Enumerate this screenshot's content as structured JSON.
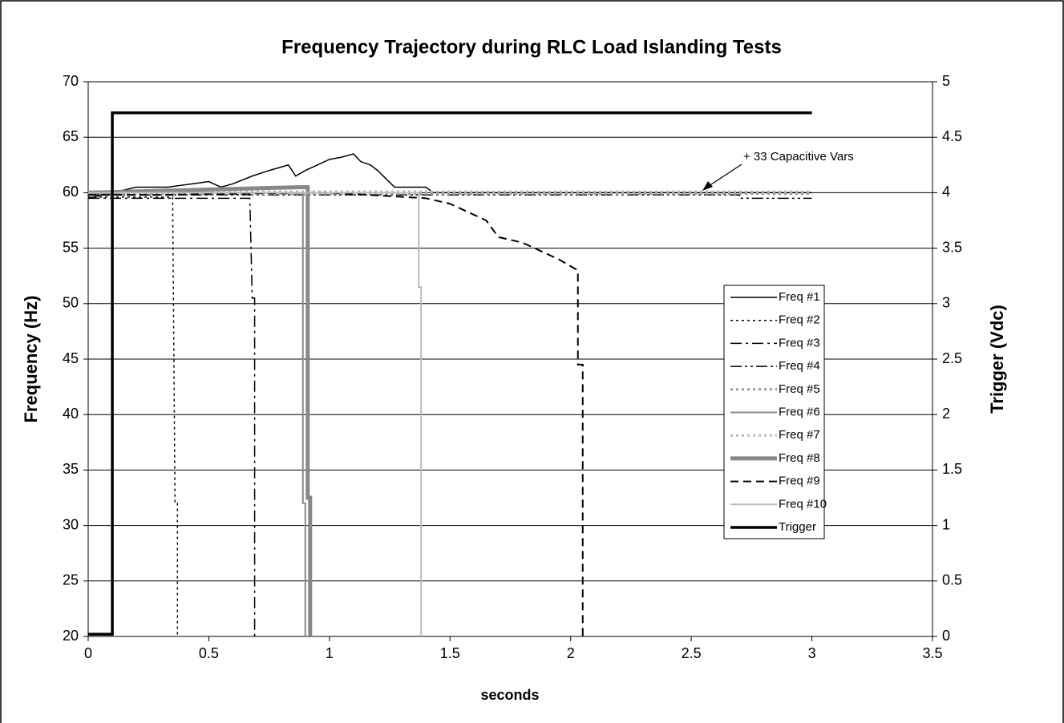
{
  "chart_data": {
    "type": "line",
    "title": "Frequency Trajectory during RLC Load Islanding Tests",
    "x_label": "seconds",
    "y_label": "Frequency (Hz)",
    "y2_label": "Trigger (Vdc)",
    "annotation": "+ 33 Capacitive Vars",
    "xlim": [
      0,
      3.5
    ],
    "xticks": [
      0,
      0.5,
      1,
      1.5,
      2,
      2.5,
      3,
      3.5
    ],
    "ylim": [
      20,
      70
    ],
    "yticks": [
      20,
      25,
      30,
      35,
      40,
      45,
      50,
      55,
      60,
      65,
      70
    ],
    "y2lim": [
      0,
      5
    ],
    "y2ticks": [
      0,
      0.5,
      1,
      1.5,
      2,
      2.5,
      3,
      3.5,
      4,
      4.5,
      5
    ],
    "grid": true,
    "legend": "right",
    "series": [
      {
        "name": "Freq #1",
        "color": "#000000",
        "style": "solid",
        "width": 1.5,
        "x": [
          0,
          0.2,
          0.33,
          0.5,
          0.55,
          0.6,
          0.68,
          0.75,
          0.83,
          0.86,
          0.9,
          0.95,
          1.0,
          1.05,
          1.1,
          1.13,
          1.17,
          1.2,
          1.27,
          1.4,
          1.43,
          3.0
        ],
        "values": [
          59.5,
          60.5,
          60.5,
          61,
          60.5,
          60.8,
          61.5,
          62,
          62.5,
          61.5,
          62,
          62.5,
          63,
          63.2,
          63.5,
          62.8,
          62.5,
          62,
          60.5,
          60.5,
          60,
          60
        ]
      },
      {
        "name": "Freq #2",
        "color": "#000000",
        "style": "dotted",
        "width": 1.5,
        "x": [
          0,
          0.35,
          0.36,
          0.37,
          0.37
        ],
        "values": [
          59.6,
          59.6,
          32,
          32,
          20
        ]
      },
      {
        "name": "Freq #3",
        "color": "#000000",
        "style": "dashdot",
        "width": 1.5,
        "x": [
          0,
          0.67,
          0.68,
          0.69,
          0.69
        ],
        "values": [
          59.5,
          59.5,
          50.5,
          50.5,
          20
        ]
      },
      {
        "name": "Freq #4",
        "color": "#000000",
        "style": "dashdotdot",
        "width": 1.5,
        "x": [
          0,
          2.7,
          2.7,
          3.0
        ],
        "values": [
          59.8,
          59.8,
          59.5,
          59.5
        ]
      },
      {
        "name": "Freq #5",
        "color": "#999999",
        "style": "dotted",
        "width": 3,
        "x": [
          0,
          3.0
        ],
        "values": [
          59.9,
          59.9
        ]
      },
      {
        "name": "Freq #6",
        "color": "#888888",
        "style": "solid",
        "width": 2,
        "x": [
          0,
          0.89,
          0.89,
          0.9,
          0.9
        ],
        "values": [
          60,
          60,
          32,
          32,
          20
        ]
      },
      {
        "name": "Freq #7",
        "color": "#bbbbbb",
        "style": "dotted",
        "width": 3,
        "x": [
          0,
          3.0
        ],
        "values": [
          60.1,
          60.1
        ]
      },
      {
        "name": "Freq #8",
        "color": "#888888",
        "style": "solid",
        "width": 5,
        "x": [
          0,
          0.88,
          0.91,
          0.91,
          0.92,
          0.92
        ],
        "values": [
          60,
          60.5,
          60.5,
          32.5,
          32.5,
          20
        ]
      },
      {
        "name": "Freq #9",
        "color": "#000000",
        "style": "dashed",
        "width": 2,
        "x": [
          0,
          0.3,
          0.9,
          1.0,
          1.4,
          1.5,
          1.55,
          1.65,
          1.7,
          1.8,
          1.9,
          1.95,
          2.03,
          2.03,
          2.05,
          2.05
        ],
        "values": [
          59.8,
          59.8,
          60,
          60,
          59.5,
          59,
          58.5,
          57.5,
          56,
          55.5,
          54.5,
          54,
          53,
          44.5,
          44.5,
          20
        ]
      },
      {
        "name": "Freq #10",
        "color": "#bbbbbb",
        "style": "solid",
        "width": 2,
        "x": [
          0,
          1.37,
          1.37,
          1.38,
          1.38
        ],
        "values": [
          60,
          60,
          51.5,
          51.5,
          20
        ]
      },
      {
        "name": "Trigger",
        "color": "#000000",
        "style": "solid",
        "width": 3.5,
        "axis": "y2",
        "x": [
          0,
          0.1,
          0.1,
          3.0
        ],
        "values": [
          0.02,
          0.02,
          4.72,
          4.72
        ]
      }
    ]
  }
}
